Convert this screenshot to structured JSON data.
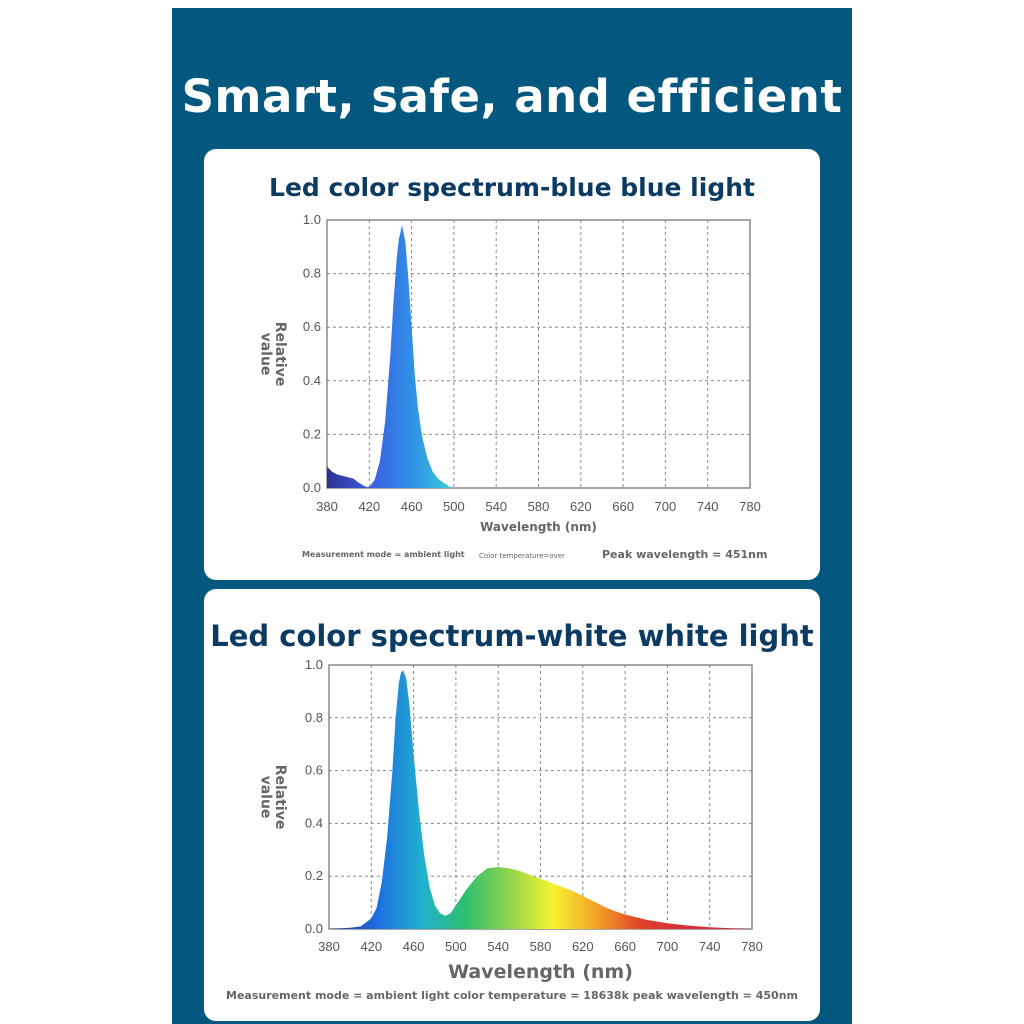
{
  "headline": "Smart, safe, and efficient",
  "colors": {
    "banner": "#04577e",
    "card_title": "#0b3a63",
    "grid": "#888888",
    "blue_light_fill": [
      "#2a2f8a",
      "#3f5ae0",
      "#2f8ee6",
      "#3ad0d8"
    ],
    "white_light_fill": [
      "#2a3a9a",
      "#1e6ee0",
      "#20b0d0",
      "#2ebf6e",
      "#8ed44a",
      "#f6f231",
      "#f3a226",
      "#e0432a",
      "#d42e3a"
    ]
  },
  "chart_data": [
    {
      "type": "area",
      "title": "Led color spectrum-blue blue light",
      "xlabel": "Wavelength (nm)",
      "ylabel": "Relative value",
      "xlim": [
        380,
        780
      ],
      "ylim": [
        0,
        1.0
      ],
      "x_ticks": [
        380,
        420,
        460,
        500,
        540,
        580,
        620,
        660,
        700,
        740,
        780
      ],
      "y_ticks": [
        0.0,
        0.2,
        0.4,
        0.6,
        0.8,
        1.0
      ],
      "grid": true,
      "x": [
        380,
        385,
        390,
        395,
        400,
        405,
        410,
        415,
        418,
        420,
        425,
        430,
        435,
        440,
        443,
        446,
        448,
        451,
        454,
        457,
        460,
        463,
        466,
        470,
        475,
        480,
        485,
        490,
        494,
        497
      ],
      "y": [
        0.08,
        0.06,
        0.05,
        0.045,
        0.04,
        0.035,
        0.02,
        0.008,
        0.003,
        0.005,
        0.03,
        0.1,
        0.25,
        0.5,
        0.7,
        0.86,
        0.93,
        0.98,
        0.92,
        0.78,
        0.6,
        0.42,
        0.3,
        0.19,
        0.11,
        0.06,
        0.035,
        0.02,
        0.01,
        0.0
      ],
      "notes": {
        "mode": "Measurement mode = ambient light",
        "temp": "Color temperature=over",
        "peak": "Peak wavelength = 451nm"
      }
    },
    {
      "type": "area",
      "title": "Led color spectrum-white white light",
      "xlabel": "Wavelength (nm)",
      "ylabel": "Relative value",
      "xlim": [
        380,
        780
      ],
      "ylim": [
        0,
        1.0
      ],
      "x_ticks": [
        380,
        420,
        460,
        500,
        540,
        580,
        620,
        660,
        700,
        740,
        780
      ],
      "y_ticks": [
        0.0,
        0.2,
        0.4,
        0.6,
        0.8,
        1.0
      ],
      "grid": true,
      "x": [
        380,
        400,
        410,
        420,
        425,
        430,
        435,
        440,
        443,
        446,
        448,
        450,
        453,
        456,
        460,
        465,
        470,
        475,
        480,
        485,
        490,
        495,
        500,
        510,
        520,
        530,
        540,
        550,
        560,
        570,
        580,
        590,
        600,
        610,
        620,
        630,
        640,
        650,
        660,
        680,
        700,
        720,
        740,
        760,
        780
      ],
      "y": [
        0.0,
        0.005,
        0.01,
        0.04,
        0.08,
        0.18,
        0.35,
        0.6,
        0.8,
        0.93,
        0.97,
        0.98,
        0.95,
        0.85,
        0.66,
        0.45,
        0.28,
        0.16,
        0.09,
        0.06,
        0.05,
        0.06,
        0.09,
        0.15,
        0.2,
        0.23,
        0.235,
        0.23,
        0.22,
        0.205,
        0.19,
        0.175,
        0.16,
        0.145,
        0.125,
        0.105,
        0.085,
        0.068,
        0.055,
        0.035,
        0.022,
        0.013,
        0.007,
        0.003,
        0.0
      ],
      "notes": {
        "full": "Measurement mode = ambient light color temperature = 18638k peak wavelength = 450nm"
      }
    }
  ]
}
